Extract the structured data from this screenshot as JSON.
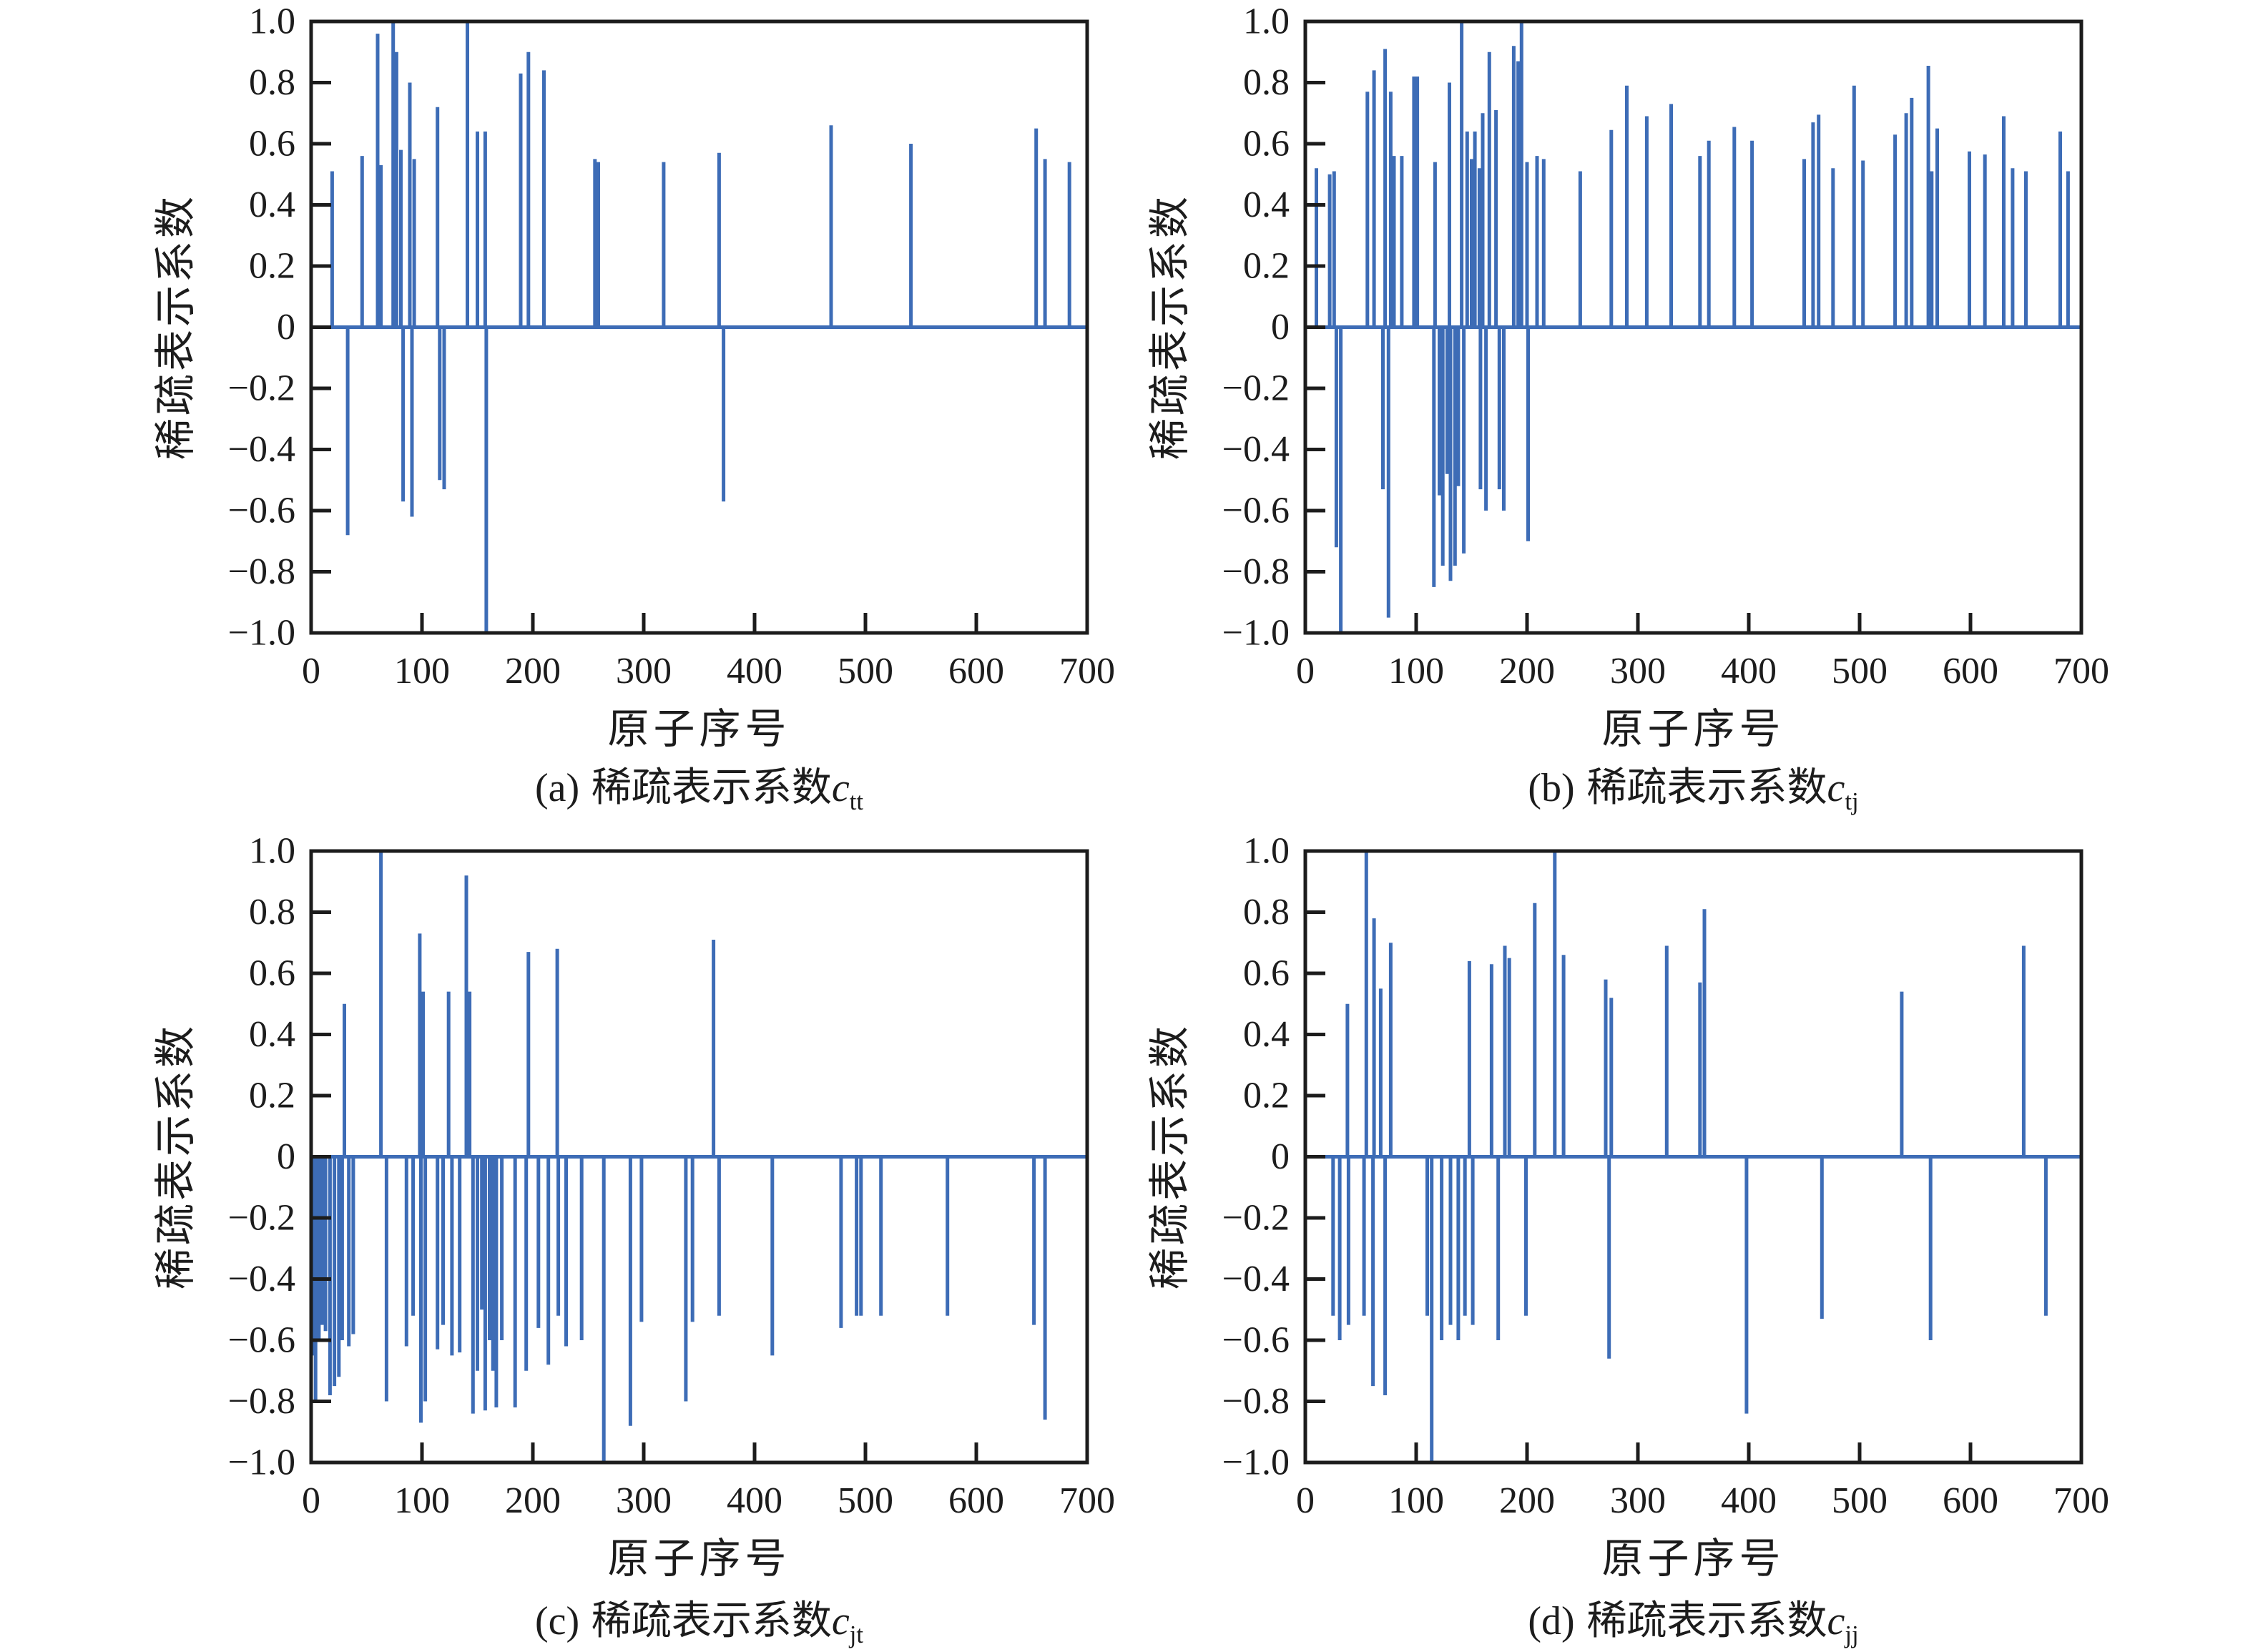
{
  "figure": {
    "background": "#ffffff",
    "line_color": "#3d6cb6",
    "axis_color": "#1c1c1c",
    "axes": {
      "xlim": [
        0,
        700
      ],
      "ylim": [
        -1.0,
        1.0
      ],
      "xtick_values": [
        0,
        100,
        200,
        300,
        400,
        500,
        600,
        700
      ],
      "xtick_labels": [
        "0",
        "100",
        "200",
        "300",
        "400",
        "500",
        "600",
        "700"
      ],
      "ytick_values": [
        1.0,
        0.8,
        0.6,
        0.4,
        0.2,
        0,
        -0.2,
        -0.4,
        -0.6,
        -0.8,
        -1.0
      ],
      "ytick_labels": [
        "1.0",
        "0.8",
        "0.6",
        "0.4",
        "0.2",
        "0",
        "−0.2",
        "−0.4",
        "−0.6",
        "−0.8",
        "−1.0"
      ],
      "grid": false,
      "tick_direction": "in"
    }
  },
  "chart_data": [
    {
      "type": "bar",
      "subtype": "stem-spikes",
      "caption": {
        "label": "(a)",
        "text": "稀疏表示系数",
        "symbol": "c",
        "sub": "tt"
      },
      "xlabel": "原子序号",
      "ylabel": "稀疏表示系数",
      "xlim": [
        0,
        700
      ],
      "ylim": [
        -1.0,
        1.0
      ],
      "spikes": [
        [
          19,
          0.51
        ],
        [
          33,
          -0.68
        ],
        [
          46,
          0.56
        ],
        [
          60,
          0.96
        ],
        [
          63,
          0.53
        ],
        [
          74,
          1.0
        ],
        [
          77,
          0.9
        ],
        [
          81,
          0.58
        ],
        [
          83,
          -0.57
        ],
        [
          89,
          0.8
        ],
        [
          91,
          -0.62
        ],
        [
          93,
          0.55
        ],
        [
          114,
          0.72
        ],
        [
          116,
          -0.5
        ],
        [
          120,
          -0.53
        ],
        [
          141,
          1.0
        ],
        [
          150,
          0.64
        ],
        [
          157,
          0.64
        ],
        [
          158,
          -1.0
        ],
        [
          189,
          0.83
        ],
        [
          196,
          0.9
        ],
        [
          210,
          0.84
        ],
        [
          256,
          0.55
        ],
        [
          259,
          0.54
        ],
        [
          318,
          0.54
        ],
        [
          368,
          0.57
        ],
        [
          372,
          -0.57
        ],
        [
          469,
          0.66
        ],
        [
          541,
          0.6
        ],
        [
          654,
          0.65
        ],
        [
          662,
          0.55
        ],
        [
          684,
          0.54
        ]
      ]
    },
    {
      "type": "bar",
      "subtype": "stem-spikes",
      "caption": {
        "label": "(b)",
        "text": "稀疏表示系数",
        "symbol": "c",
        "sub": "tj"
      },
      "xlabel": "原子序号",
      "ylabel": "稀疏表示系数",
      "xlim": [
        0,
        700
      ],
      "ylim": [
        -1.0,
        1.0
      ],
      "spikes": [
        [
          10,
          0.52
        ],
        [
          22,
          0.5
        ],
        [
          26,
          0.51
        ],
        [
          28,
          -0.72
        ],
        [
          32,
          -1.0
        ],
        [
          56,
          0.77
        ],
        [
          62,
          0.84
        ],
        [
          70,
          -0.53
        ],
        [
          72,
          0.91
        ],
        [
          75,
          -0.95
        ],
        [
          77,
          0.77
        ],
        [
          80,
          0.56
        ],
        [
          87,
          0.56
        ],
        [
          98,
          0.82
        ],
        [
          101,
          0.82
        ],
        [
          116,
          -0.85
        ],
        [
          117,
          0.54
        ],
        [
          121,
          -0.55
        ],
        [
          124,
          -0.78
        ],
        [
          128,
          -0.48
        ],
        [
          130,
          0.8
        ],
        [
          131,
          -0.83
        ],
        [
          135,
          -0.78
        ],
        [
          138,
          -0.52
        ],
        [
          141,
          1.0
        ],
        [
          143,
          -0.74
        ],
        [
          146,
          0.64
        ],
        [
          150,
          0.55
        ],
        [
          153,
          0.64
        ],
        [
          157,
          0.52
        ],
        [
          158,
          -0.53
        ],
        [
          160,
          0.7
        ],
        [
          163,
          -0.6
        ],
        [
          166,
          0.9
        ],
        [
          172,
          0.71
        ],
        [
          175,
          -0.53
        ],
        [
          179,
          -0.6
        ],
        [
          188,
          0.92
        ],
        [
          192,
          0.87
        ],
        [
          195,
          1.0
        ],
        [
          200,
          0.54
        ],
        [
          201,
          -0.7
        ],
        [
          209,
          0.56
        ],
        [
          215,
          0.55
        ],
        [
          248,
          0.51
        ],
        [
          276,
          0.645
        ],
        [
          290,
          0.79
        ],
        [
          308,
          0.69
        ],
        [
          330,
          0.73
        ],
        [
          356,
          0.56
        ],
        [
          364,
          0.61
        ],
        [
          387,
          0.655
        ],
        [
          403,
          0.61
        ],
        [
          450,
          0.55
        ],
        [
          458,
          0.67
        ],
        [
          463,
          0.695
        ],
        [
          476,
          0.52
        ],
        [
          495,
          0.79
        ],
        [
          503,
          0.545
        ],
        [
          532,
          0.63
        ],
        [
          542,
          0.7
        ],
        [
          547,
          0.75
        ],
        [
          562,
          0.855
        ],
        [
          565,
          0.51
        ],
        [
          570,
          0.65
        ],
        [
          599,
          0.575
        ],
        [
          613,
          0.565
        ],
        [
          630,
          0.69
        ],
        [
          638,
          0.52
        ],
        [
          650,
          0.51
        ],
        [
          681,
          0.64
        ],
        [
          688,
          0.51
        ]
      ]
    },
    {
      "type": "bar",
      "subtype": "stem-spikes",
      "caption": {
        "label": "(c)",
        "text": "稀疏表示系数",
        "symbol": "c",
        "sub": "jt"
      },
      "xlabel": "原子序号",
      "ylabel": "稀疏表示系数",
      "xlim": [
        0,
        700
      ],
      "ylim": [
        -1.0,
        1.0
      ],
      "spikes": [
        [
          2,
          -0.65
        ],
        [
          4,
          -0.8
        ],
        [
          7,
          -0.6
        ],
        [
          10,
          -0.55
        ],
        [
          13,
          -0.57
        ],
        [
          17,
          -0.78
        ],
        [
          21,
          -0.75
        ],
        [
          25,
          -0.72
        ],
        [
          28,
          -0.6
        ],
        [
          30,
          0.5
        ],
        [
          34,
          -0.62
        ],
        [
          38,
          -0.58
        ],
        [
          63,
          1.0
        ],
        [
          68,
          -0.8
        ],
        [
          86,
          -0.62
        ],
        [
          92,
          -0.52
        ],
        [
          98,
          0.73
        ],
        [
          99,
          -0.87
        ],
        [
          101,
          0.54
        ],
        [
          103,
          -0.8
        ],
        [
          114,
          -0.63
        ],
        [
          119,
          -0.55
        ],
        [
          124,
          0.54
        ],
        [
          127,
          -0.65
        ],
        [
          134,
          -0.64
        ],
        [
          140,
          0.92
        ],
        [
          143,
          0.54
        ],
        [
          146,
          -0.84
        ],
        [
          150,
          -0.7
        ],
        [
          154,
          -0.5
        ],
        [
          157,
          -0.83
        ],
        [
          161,
          -0.6
        ],
        [
          164,
          -0.7
        ],
        [
          167,
          -0.82
        ],
        [
          172,
          -0.6
        ],
        [
          184,
          -0.82
        ],
        [
          194,
          -0.7
        ],
        [
          196,
          0.67
        ],
        [
          205,
          -0.56
        ],
        [
          214,
          -0.68
        ],
        [
          222,
          0.68
        ],
        [
          223,
          -0.52
        ],
        [
          230,
          -0.62
        ],
        [
          244,
          -0.6
        ],
        [
          264,
          -1.0
        ],
        [
          288,
          -0.88
        ],
        [
          298,
          -0.54
        ],
        [
          338,
          -0.8
        ],
        [
          344,
          -0.54
        ],
        [
          363,
          0.71
        ],
        [
          368,
          -0.52
        ],
        [
          416,
          -0.65
        ],
        [
          478,
          -0.56
        ],
        [
          492,
          -0.52
        ],
        [
          496,
          -0.52
        ],
        [
          514,
          -0.52
        ],
        [
          574,
          -0.52
        ],
        [
          652,
          -0.55
        ],
        [
          662,
          -0.86
        ]
      ]
    },
    {
      "type": "bar",
      "subtype": "stem-spikes",
      "caption": {
        "label": "(d)",
        "text": "稀疏表示系数",
        "symbol": "c",
        "sub": "jj"
      },
      "xlabel": "原子序号",
      "ylabel": "稀疏表示系数",
      "xlim": [
        0,
        700
      ],
      "ylim": [
        -1.0,
        1.0
      ],
      "spikes": [
        [
          25,
          -0.52
        ],
        [
          31,
          -0.6
        ],
        [
          38,
          0.5
        ],
        [
          39,
          -0.55
        ],
        [
          53,
          -0.52
        ],
        [
          55,
          1.0
        ],
        [
          61,
          -0.75
        ],
        [
          62,
          0.78
        ],
        [
          68,
          0.55
        ],
        [
          72,
          -0.78
        ],
        [
          77,
          0.7
        ],
        [
          110,
          -0.52
        ],
        [
          114,
          -1.0
        ],
        [
          123,
          -0.6
        ],
        [
          131,
          -0.55
        ],
        [
          138,
          -0.6
        ],
        [
          144,
          -0.52
        ],
        [
          148,
          0.64
        ],
        [
          151,
          -0.55
        ],
        [
          168,
          0.63
        ],
        [
          174,
          -0.6
        ],
        [
          180,
          0.69
        ],
        [
          184,
          0.65
        ],
        [
          199,
          -0.52
        ],
        [
          207,
          0.83
        ],
        [
          225,
          1.0
        ],
        [
          233,
          0.66
        ],
        [
          271,
          0.58
        ],
        [
          274,
          -0.66
        ],
        [
          276,
          0.52
        ],
        [
          326,
          0.69
        ],
        [
          356,
          0.57
        ],
        [
          360,
          0.81
        ],
        [
          398,
          -0.84
        ],
        [
          466,
          -0.53
        ],
        [
          538,
          0.54
        ],
        [
          564,
          -0.6
        ],
        [
          648,
          0.69
        ],
        [
          668,
          -0.52
        ]
      ]
    }
  ]
}
